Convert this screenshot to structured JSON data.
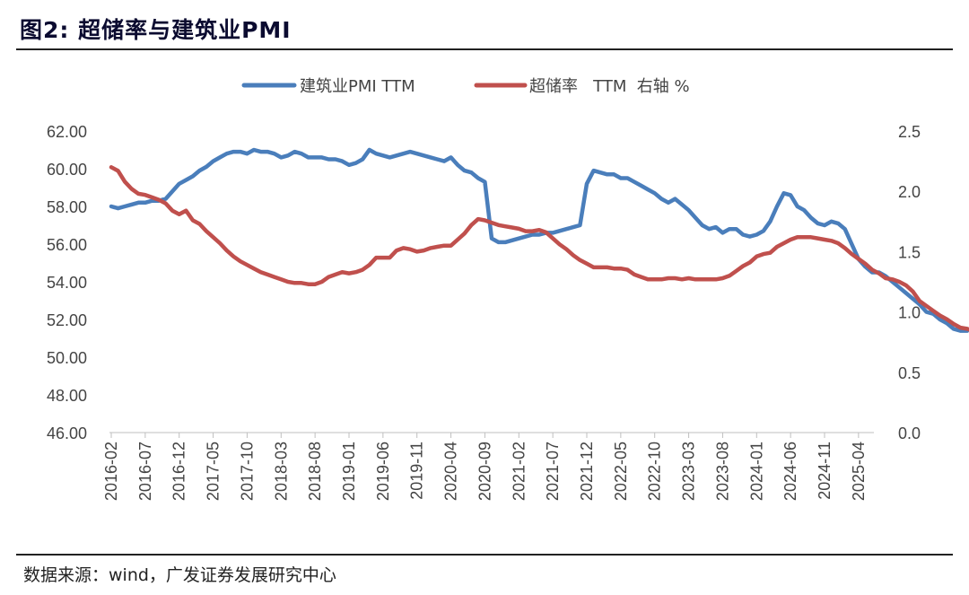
{
  "figure": {
    "title": "图2:  超储率与建筑业PMI",
    "source": "数据来源：wind，广发证券发展研究中心"
  },
  "chart_data": {
    "type": "line",
    "x_tick_labels": [
      "2016-02",
      "2016-07",
      "2016-12",
      "2017-05",
      "2017-10",
      "2018-03",
      "2018-08",
      "2019-01",
      "2019-06",
      "2019-11",
      "2020-04",
      "2020-09",
      "2021-02",
      "2021-07",
      "2021-12",
      "2022-05",
      "2022-10",
      "2023-03",
      "2023-08",
      "2024-01",
      "2024-06",
      "2024-11",
      "2025-04"
    ],
    "x_range": [
      "2016-02",
      "2025-06"
    ],
    "y_left": {
      "min": 46,
      "max": 62,
      "step": 2,
      "tick_labels": [
        "46.00",
        "48.00",
        "50.00",
        "52.00",
        "54.00",
        "56.00",
        "58.00",
        "60.00",
        "62.00"
      ]
    },
    "y_right": {
      "min": 0,
      "max": 2.5,
      "step": 0.5,
      "tick_labels": [
        "0.0",
        "0.5",
        "1.0",
        "1.5",
        "2.0",
        "2.5"
      ]
    },
    "grid": false,
    "legend_position": "top-center",
    "series": [
      {
        "name": "建筑业PMI TTM",
        "axis": "left",
        "color": "#4a7ebb",
        "values": [
          58.0,
          57.9,
          58.0,
          58.1,
          58.2,
          58.2,
          58.3,
          58.3,
          58.4,
          58.8,
          59.2,
          59.4,
          59.6,
          59.9,
          60.1,
          60.4,
          60.6,
          60.8,
          60.9,
          60.9,
          60.8,
          61.0,
          60.9,
          60.9,
          60.8,
          60.6,
          60.7,
          60.9,
          60.8,
          60.6,
          60.6,
          60.6,
          60.5,
          60.5,
          60.4,
          60.2,
          60.3,
          60.5,
          61.0,
          60.8,
          60.7,
          60.6,
          60.7,
          60.8,
          60.9,
          60.8,
          60.7,
          60.6,
          60.5,
          60.4,
          60.6,
          60.2,
          59.9,
          59.8,
          59.5,
          59.3,
          56.3,
          56.1,
          56.1,
          56.2,
          56.3,
          56.4,
          56.5,
          56.5,
          56.6,
          56.6,
          56.7,
          56.8,
          56.9,
          57.0,
          59.2,
          59.9,
          59.8,
          59.7,
          59.7,
          59.5,
          59.5,
          59.3,
          59.1,
          58.9,
          58.7,
          58.4,
          58.2,
          58.4,
          58.1,
          57.8,
          57.4,
          57.0,
          56.8,
          56.9,
          56.6,
          56.8,
          56.8,
          56.5,
          56.4,
          56.5,
          56.7,
          57.2,
          58.0,
          58.7,
          58.6,
          58.0,
          57.8,
          57.4,
          57.1,
          57.0,
          57.2,
          57.1,
          56.8,
          56.0,
          55.2,
          54.8,
          54.5,
          54.5,
          54.3,
          54.0,
          53.7,
          53.4,
          53.1,
          52.8,
          52.4,
          52.3,
          52.0,
          51.8,
          51.5,
          51.4,
          51.4
        ],
        "label_x": "",
        "label_y": ""
      },
      {
        "name": "超储率   TTM  右轴 %",
        "axis": "right",
        "color": "#c0504d",
        "values": [
          2.2,
          2.17,
          2.08,
          2.02,
          1.98,
          1.97,
          1.95,
          1.93,
          1.9,
          1.84,
          1.81,
          1.84,
          1.76,
          1.73,
          1.67,
          1.62,
          1.57,
          1.51,
          1.46,
          1.42,
          1.39,
          1.36,
          1.33,
          1.31,
          1.29,
          1.27,
          1.25,
          1.24,
          1.24,
          1.23,
          1.23,
          1.25,
          1.29,
          1.31,
          1.33,
          1.32,
          1.33,
          1.35,
          1.39,
          1.45,
          1.45,
          1.45,
          1.51,
          1.53,
          1.52,
          1.5,
          1.51,
          1.53,
          1.54,
          1.55,
          1.55,
          1.6,
          1.65,
          1.72,
          1.77,
          1.76,
          1.74,
          1.72,
          1.71,
          1.7,
          1.69,
          1.67,
          1.67,
          1.68,
          1.66,
          1.61,
          1.56,
          1.52,
          1.47,
          1.43,
          1.4,
          1.37,
          1.37,
          1.37,
          1.36,
          1.36,
          1.35,
          1.31,
          1.29,
          1.27,
          1.27,
          1.27,
          1.28,
          1.28,
          1.27,
          1.28,
          1.27,
          1.27,
          1.27,
          1.27,
          1.28,
          1.3,
          1.34,
          1.38,
          1.41,
          1.46,
          1.48,
          1.49,
          1.54,
          1.57,
          1.6,
          1.62,
          1.62,
          1.62,
          1.61,
          1.6,
          1.59,
          1.57,
          1.53,
          1.48,
          1.44,
          1.4,
          1.35,
          1.32,
          1.28,
          1.27,
          1.25,
          1.22,
          1.17,
          1.09,
          1.05,
          1.01,
          0.97,
          0.94,
          0.9,
          0.87,
          0.86,
          0.84
        ]
      }
    ]
  }
}
